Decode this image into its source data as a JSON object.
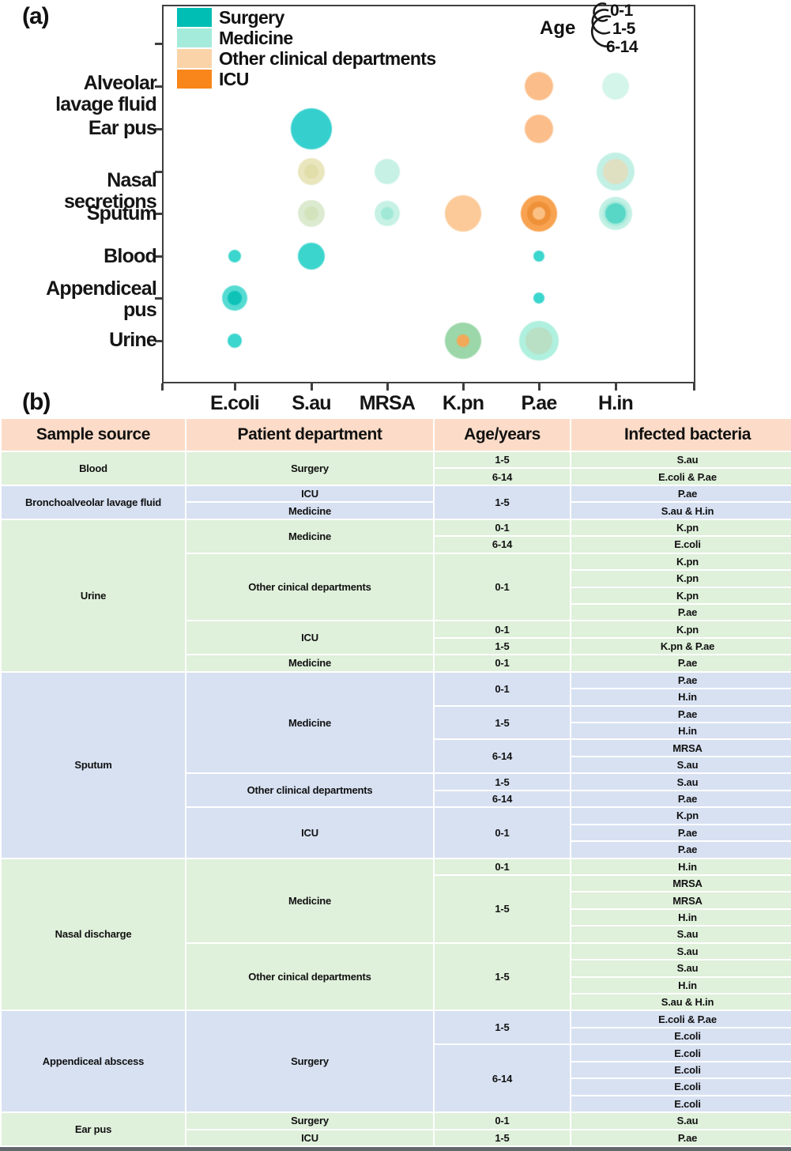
{
  "panel_a_label": "(a)",
  "panel_b_label": "(b)",
  "colors": {
    "surgery": "#00beb4",
    "medicine": "#a5ebdc",
    "other": "#fbd3a9",
    "icu": "#f8861b",
    "axis": "#3f3f3f",
    "header_bg": "#fcdcc8",
    "group_green": "#dff0db",
    "group_blue": "#d7e1f2",
    "bottom_bar": "#63686d"
  },
  "chart_data": [
    {
      "type": "bubble",
      "title": "",
      "x_categories": [
        "E.coli",
        "S.au",
        "MRSA",
        "K.pn",
        "P.ae",
        "H.in"
      ],
      "y_categories": [
        "Alveolar lavage fluid",
        "Ear pus",
        "Nasal secretions",
        "Sputum",
        "Blood",
        "Appendiceal pus",
        "Urine"
      ],
      "legend": [
        {
          "label": "Surgery",
          "color": "#00beb4"
        },
        {
          "label": "Medicine",
          "color": "#a5ebdc"
        },
        {
          "label": "Other clinical departments",
          "color": "#fbd3a9"
        },
        {
          "label": "ICU",
          "color": "#f8861b"
        }
      ],
      "age_legend": {
        "title": "Age",
        "sizes": [
          "0-1",
          "1-5",
          "6-14"
        ],
        "note": "bubble radius grows with age group"
      },
      "bubbles": [
        {
          "bacteria": "E.coli",
          "sample": "Blood",
          "layers": [
            {
              "r": 8,
              "color": "#3bd6ce"
            }
          ]
        },
        {
          "bacteria": "E.coli",
          "sample": "Appendiceal pus",
          "layers": [
            {
              "r": 16,
              "color": "#55dbd2"
            },
            {
              "r": 9,
              "color": "#0ec2b8"
            }
          ]
        },
        {
          "bacteria": "E.coli",
          "sample": "Urine",
          "layers": [
            {
              "r": 9,
              "color": "#3bd6ce"
            }
          ]
        },
        {
          "bacteria": "S.au",
          "sample": "Ear pus",
          "layers": [
            {
              "r": 26,
              "color": "#35d0ce"
            }
          ]
        },
        {
          "bacteria": "S.au",
          "sample": "Nasal secretions",
          "layers": [
            {
              "r": 17,
              "color": "#e9e5bd"
            },
            {
              "r": 9,
              "color": "#e2dea9"
            }
          ]
        },
        {
          "bacteria": "S.au",
          "sample": "Sputum",
          "layers": [
            {
              "r": 17,
              "color": "#dcead0"
            },
            {
              "r": 9,
              "color": "#d3e4bc"
            }
          ]
        },
        {
          "bacteria": "S.au",
          "sample": "Blood",
          "layers": [
            {
              "r": 17,
              "color": "#3cd5cd"
            }
          ]
        },
        {
          "bacteria": "MRSA",
          "sample": "Nasal secretions",
          "layers": [
            {
              "r": 16,
              "color": "#c6f1e4"
            }
          ]
        },
        {
          "bacteria": "MRSA",
          "sample": "Sputum",
          "layers": [
            {
              "r": 16,
              "color": "#c6f1e4"
            },
            {
              "r": 8,
              "color": "#9fe9d6"
            }
          ]
        },
        {
          "bacteria": "K.pn",
          "sample": "Sputum",
          "layers": [
            {
              "r": 23,
              "color": "#fbca98"
            }
          ]
        },
        {
          "bacteria": "K.pn",
          "sample": "Urine",
          "layers": [
            {
              "r": 23,
              "color": "#9bd7a9"
            },
            {
              "r": 8,
              "color": "#f2a95a"
            }
          ]
        },
        {
          "bacteria": "P.ae",
          "sample": "Alveolar lavage fluid",
          "layers": [
            {
              "r": 18,
              "color": "#fbbe8a"
            }
          ]
        },
        {
          "bacteria": "P.ae",
          "sample": "Ear pus",
          "layers": [
            {
              "r": 18,
              "color": "#fbbe8a"
            }
          ]
        },
        {
          "bacteria": "P.ae",
          "sample": "Sputum",
          "layers": [
            {
              "r": 23,
              "color": "#f8a351"
            },
            {
              "r": 15,
              "color": "#ee9139"
            },
            {
              "r": 8,
              "color": "#fbc083"
            }
          ]
        },
        {
          "bacteria": "P.ae",
          "sample": "Blood",
          "layers": [
            {
              "r": 7,
              "color": "#3bd6ce"
            }
          ]
        },
        {
          "bacteria": "P.ae",
          "sample": "Appendiceal pus",
          "layers": [
            {
              "r": 7,
              "color": "#3bd6ce"
            }
          ]
        },
        {
          "bacteria": "P.ae",
          "sample": "Urine",
          "layers": [
            {
              "r": 25,
              "color": "#aff0de"
            },
            {
              "r": 17,
              "color": "#b9dfc4"
            }
          ]
        },
        {
          "bacteria": "H.in",
          "sample": "Alveolar lavage fluid",
          "layers": [
            {
              "r": 17,
              "color": "#d4f5ea"
            }
          ]
        },
        {
          "bacteria": "H.in",
          "sample": "Nasal secretions",
          "layers": [
            {
              "r": 24,
              "color": "#c2f0e4"
            },
            {
              "r": 16,
              "color": "#dfdfc2"
            }
          ]
        },
        {
          "bacteria": "H.in",
          "sample": "Sputum",
          "layers": [
            {
              "r": 21,
              "color": "#c2f0e4"
            },
            {
              "r": 16,
              "color": "#a9ebdc"
            },
            {
              "r": 13,
              "color": "#58d6c6"
            }
          ]
        }
      ]
    },
    {
      "type": "table",
      "headers": [
        "Sample source",
        "Patient department",
        "Age/years",
        "Infected bacteria"
      ],
      "groups": [
        {
          "source": "Blood",
          "tint": "green",
          "rows": [
            {
              "dept": "Surgery",
              "deptSpan": 2,
              "age": "1-5",
              "ageSpan": 1,
              "bact": "S.au"
            },
            {
              "age": "6-14",
              "ageSpan": 1,
              "bact": "E.coli & P.ae"
            }
          ]
        },
        {
          "source": "Bronchoalveolar lavage fluid",
          "tint": "blue",
          "rows": [
            {
              "dept": "ICU",
              "deptSpan": 1,
              "age": "1-5",
              "ageSpan": 2,
              "bact": "P.ae"
            },
            {
              "dept": "Medicine",
              "deptSpan": 1,
              "bact": "S.au & H.in"
            }
          ]
        },
        {
          "source": "Urine",
          "tint": "green",
          "rows": [
            {
              "dept": "Medicine",
              "deptSpan": 2,
              "age": "0-1",
              "ageSpan": 1,
              "bact": "K.pn"
            },
            {
              "age": "6-14",
              "ageSpan": 1,
              "bact": "E.coli"
            },
            {
              "dept": "Other cinical departments",
              "deptSpan": 4,
              "age": "0-1",
              "ageSpan": 4,
              "bact": "K.pn"
            },
            {
              "bact": "K.pn"
            },
            {
              "bact": "K.pn"
            },
            {
              "bact": "P.ae"
            },
            {
              "dept": "ICU",
              "deptSpan": 2,
              "age": "0-1",
              "ageSpan": 1,
              "bact": "K.pn"
            },
            {
              "age": "1-5",
              "ageSpan": 1,
              "bact": "K.pn & P.ae"
            },
            {
              "dept": "Medicine",
              "deptSpan": 1,
              "age": "0-1",
              "ageSpan": 1,
              "bact": "P.ae"
            }
          ]
        },
        {
          "source": "Sputum",
          "tint": "blue",
          "rows": [
            {
              "dept": "Medicine",
              "deptSpan": 6,
              "age": "0-1",
              "ageSpan": 2,
              "bact": "P.ae"
            },
            {
              "bact": "H.in"
            },
            {
              "age": "1-5",
              "ageSpan": 2,
              "bact": "P.ae"
            },
            {
              "bact": "H.in"
            },
            {
              "age": "6-14",
              "ageSpan": 2,
              "bact": "MRSA"
            },
            {
              "bact": "S.au"
            },
            {
              "dept": "Other clinical departments",
              "deptSpan": 2,
              "age": "1-5",
              "ageSpan": 1,
              "bact": "S.au"
            },
            {
              "age": "6-14",
              "ageSpan": 1,
              "bact": "P.ae"
            },
            {
              "dept": "ICU",
              "deptSpan": 3,
              "age": "0-1",
              "ageSpan": 3,
              "bact": "K.pn"
            },
            {
              "bact": "P.ae"
            },
            {
              "bact": "P.ae"
            }
          ]
        },
        {
          "source": "Nasal discharge",
          "tint": "green",
          "rows": [
            {
              "dept": "Medicine",
              "deptSpan": 5,
              "age": "0-1",
              "ageSpan": 1,
              "bact": "H.in"
            },
            {
              "age": "1-5",
              "ageSpan": 4,
              "bact": "MRSA"
            },
            {
              "bact": "MRSA"
            },
            {
              "bact": "H.in"
            },
            {
              "bact": "S.au"
            },
            {
              "dept": "Other cinical departments",
              "deptSpan": 4,
              "age": "1-5",
              "ageSpan": 4,
              "bact": "S.au"
            },
            {
              "bact": "S.au"
            },
            {
              "bact": "H.in"
            },
            {
              "bact": "S.au & H.in"
            }
          ]
        },
        {
          "source": "Appendiceal abscess",
          "tint": "blue",
          "rows": [
            {
              "dept": "Surgery",
              "deptSpan": 6,
              "age": "1-5",
              "ageSpan": 2,
              "bact": "E.coli & P.ae"
            },
            {
              "bact": "E.coli"
            },
            {
              "age": "6-14",
              "ageSpan": 4,
              "bact": "E.coli"
            },
            {
              "bact": "E.coli"
            },
            {
              "bact": "E.coli"
            },
            {
              "bact": "E.coli"
            }
          ]
        },
        {
          "source": "Ear pus",
          "tint": "green",
          "rows": [
            {
              "dept": "Surgery",
              "deptSpan": 1,
              "age": "0-1",
              "ageSpan": 1,
              "bact": "S.au"
            },
            {
              "dept": "ICU",
              "deptSpan": 1,
              "age": "1-5",
              "ageSpan": 1,
              "bact": "P.ae"
            }
          ]
        }
      ]
    }
  ]
}
